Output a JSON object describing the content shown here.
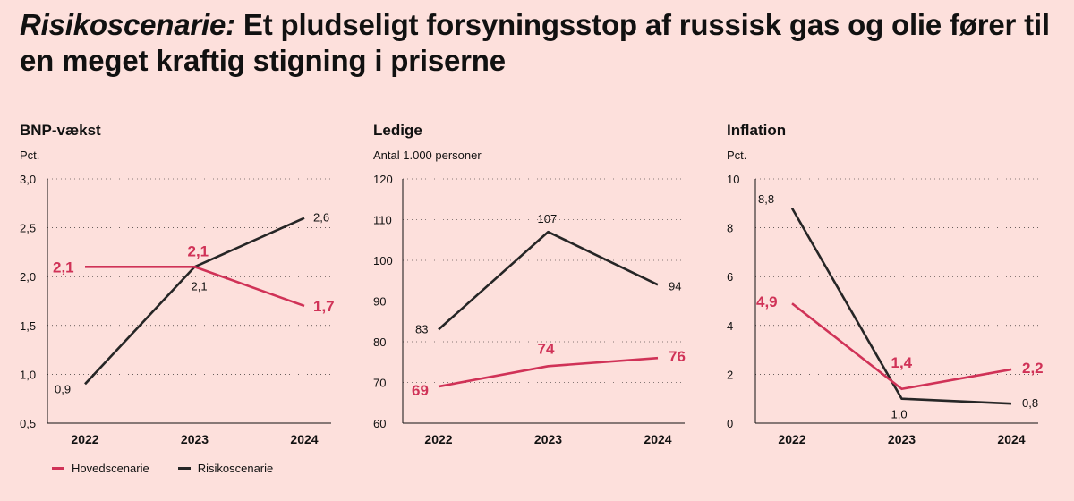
{
  "title": {
    "italic": "Risikoscenarie:",
    "rest": " Et pludseligt forsyningsstop af russisk gas og olie fører til en meget kraftig stigning i priserne"
  },
  "colors": {
    "main": "#d03257",
    "risk": "#262626",
    "background": "#fde0dc"
  },
  "legend": {
    "main": "Hovedscenarie",
    "risk": "Risikoscenarie"
  },
  "chart_data": [
    {
      "type": "line",
      "title": "BNP-vækst",
      "unit": "Pct.",
      "categories": [
        "2022",
        "2023",
        "2024"
      ],
      "ylim": [
        0.5,
        3.0
      ],
      "yticks": [
        "0,5",
        "1,0",
        "1,5",
        "2,0",
        "2,5",
        "3,0"
      ],
      "ytick_values": [
        0.5,
        1.0,
        1.5,
        2.0,
        2.5,
        3.0
      ],
      "grid": true,
      "series": [
        {
          "name": "Hovedscenarie",
          "values": [
            2.1,
            2.1,
            1.7
          ],
          "labels": [
            "2,1",
            "2,1",
            "1,7"
          ]
        },
        {
          "name": "Risikoscenarie",
          "values": [
            0.9,
            2.1,
            2.6
          ],
          "labels": [
            "0,9",
            "2,1",
            "2,6"
          ]
        }
      ]
    },
    {
      "type": "line",
      "title": "Ledige",
      "unit": "Antal 1.000 personer",
      "categories": [
        "2022",
        "2023",
        "2024"
      ],
      "ylim": [
        60,
        120
      ],
      "yticks": [
        "60",
        "70",
        "80",
        "90",
        "100",
        "110",
        "120"
      ],
      "ytick_values": [
        60,
        70,
        80,
        90,
        100,
        110,
        120
      ],
      "grid": true,
      "series": [
        {
          "name": "Hovedscenarie",
          "values": [
            69,
            74,
            76
          ],
          "labels": [
            "69",
            "74",
            "76"
          ]
        },
        {
          "name": "Risikoscenarie",
          "values": [
            83,
            107,
            94
          ],
          "labels": [
            "83",
            "107",
            "94"
          ]
        }
      ]
    },
    {
      "type": "line",
      "title": "Inflation",
      "unit": "Pct.",
      "categories": [
        "2022",
        "2023",
        "2024"
      ],
      "ylim": [
        0,
        10
      ],
      "yticks": [
        "0",
        "2",
        "4",
        "6",
        "8",
        "10"
      ],
      "ytick_values": [
        0,
        2,
        4,
        6,
        8,
        10
      ],
      "grid": true,
      "series": [
        {
          "name": "Hovedscenarie",
          "values": [
            4.9,
            1.4,
            2.2
          ],
          "labels": [
            "4,9",
            "1,4",
            "2,2"
          ]
        },
        {
          "name": "Risikoscenarie",
          "values": [
            8.8,
            1.0,
            0.8
          ],
          "labels": [
            "8,8",
            "1,0",
            "0,8"
          ]
        }
      ]
    }
  ]
}
